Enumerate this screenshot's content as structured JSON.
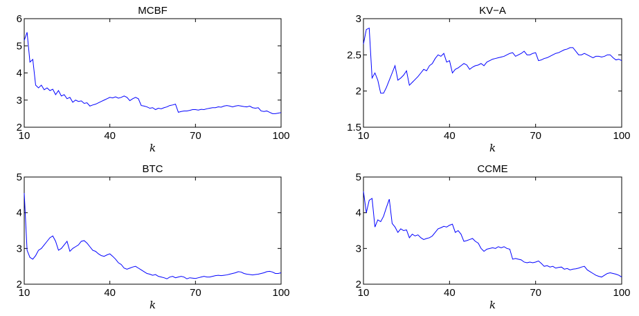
{
  "chart_data": [
    {
      "type": "line",
      "title": "MCBF",
      "xlabel": "k",
      "ylabel": "",
      "xlim": [
        10,
        100
      ],
      "ylim": [
        2,
        6
      ],
      "xticks": [
        10,
        40,
        70,
        100
      ],
      "yticks": [
        2,
        3,
        4,
        5,
        6
      ],
      "line_color": "#0000ff",
      "x": [
        10,
        11,
        12,
        13,
        14,
        15,
        16,
        17,
        18,
        19,
        20,
        21,
        22,
        23,
        24,
        25,
        26,
        27,
        28,
        29,
        30,
        31,
        32,
        33,
        34,
        35,
        36,
        37,
        38,
        39,
        40,
        41,
        42,
        43,
        44,
        45,
        46,
        47,
        48,
        49,
        50,
        51,
        52,
        53,
        54,
        55,
        56,
        57,
        58,
        59,
        60,
        61,
        62,
        63,
        64,
        65,
        66,
        67,
        68,
        69,
        70,
        71,
        72,
        73,
        74,
        75,
        76,
        77,
        78,
        79,
        80,
        81,
        82,
        83,
        84,
        85,
        86,
        87,
        88,
        89,
        90,
        91,
        92,
        93,
        94,
        95,
        96,
        97,
        98,
        99,
        100
      ],
      "y": [
        5.2,
        5.5,
        4.4,
        4.5,
        3.55,
        3.45,
        3.55,
        3.38,
        3.45,
        3.35,
        3.4,
        3.2,
        3.35,
        3.15,
        3.2,
        3.05,
        3.1,
        2.92,
        3.0,
        2.95,
        2.97,
        2.88,
        2.9,
        2.78,
        2.82,
        2.85,
        2.9,
        2.95,
        3.0,
        3.05,
        3.1,
        3.08,
        3.12,
        3.07,
        3.1,
        3.15,
        3.1,
        2.98,
        3.05,
        3.1,
        3.05,
        2.8,
        2.78,
        2.75,
        2.7,
        2.72,
        2.65,
        2.7,
        2.68,
        2.72,
        2.75,
        2.8,
        2.82,
        2.85,
        2.55,
        2.58,
        2.6,
        2.6,
        2.62,
        2.65,
        2.65,
        2.63,
        2.66,
        2.65,
        2.68,
        2.7,
        2.72,
        2.72,
        2.75,
        2.74,
        2.78,
        2.8,
        2.78,
        2.75,
        2.78,
        2.8,
        2.78,
        2.76,
        2.75,
        2.78,
        2.72,
        2.7,
        2.72,
        2.6,
        2.58,
        2.6,
        2.55,
        2.5,
        2.5,
        2.52,
        2.54
      ]
    },
    {
      "type": "line",
      "title": "KV−A",
      "xlabel": "k",
      "ylabel": "",
      "xlim": [
        10,
        100
      ],
      "ylim": [
        1.5,
        3
      ],
      "xticks": [
        10,
        40,
        70,
        100
      ],
      "yticks": [
        1.5,
        2,
        2.5,
        3
      ],
      "line_color": "#0000ff",
      "x": [
        10,
        11,
        12,
        13,
        14,
        15,
        16,
        17,
        18,
        19,
        20,
        21,
        22,
        23,
        24,
        25,
        26,
        27,
        28,
        29,
        30,
        31,
        32,
        33,
        34,
        35,
        36,
        37,
        38,
        39,
        40,
        41,
        42,
        43,
        44,
        45,
        46,
        47,
        48,
        49,
        50,
        51,
        52,
        53,
        54,
        55,
        56,
        57,
        58,
        59,
        60,
        61,
        62,
        63,
        64,
        65,
        66,
        67,
        68,
        69,
        70,
        71,
        72,
        73,
        74,
        75,
        76,
        77,
        78,
        79,
        80,
        81,
        82,
        83,
        84,
        85,
        86,
        87,
        88,
        89,
        90,
        91,
        92,
        93,
        94,
        95,
        96,
        97,
        98,
        99,
        100
      ],
      "y": [
        2.65,
        2.85,
        2.87,
        2.18,
        2.25,
        2.15,
        1.97,
        1.97,
        2.05,
        2.15,
        2.25,
        2.35,
        2.15,
        2.18,
        2.22,
        2.28,
        2.08,
        2.12,
        2.16,
        2.2,
        2.25,
        2.3,
        2.28,
        2.35,
        2.38,
        2.45,
        2.5,
        2.48,
        2.52,
        2.4,
        2.42,
        2.25,
        2.3,
        2.32,
        2.35,
        2.38,
        2.36,
        2.3,
        2.33,
        2.35,
        2.36,
        2.38,
        2.35,
        2.4,
        2.42,
        2.44,
        2.45,
        2.46,
        2.47,
        2.48,
        2.5,
        2.52,
        2.53,
        2.48,
        2.5,
        2.52,
        2.55,
        2.5,
        2.5,
        2.52,
        2.53,
        2.42,
        2.43,
        2.45,
        2.46,
        2.48,
        2.5,
        2.52,
        2.53,
        2.55,
        2.57,
        2.58,
        2.6,
        2.6,
        2.55,
        2.5,
        2.5,
        2.52,
        2.5,
        2.48,
        2.46,
        2.48,
        2.48,
        2.47,
        2.48,
        2.5,
        2.5,
        2.46,
        2.43,
        2.44,
        2.42
      ]
    },
    {
      "type": "line",
      "title": "BTC",
      "xlabel": "k",
      "ylabel": "",
      "xlim": [
        10,
        100
      ],
      "ylim": [
        2,
        5
      ],
      "xticks": [
        10,
        40,
        70,
        100
      ],
      "yticks": [
        2,
        3,
        4,
        5
      ],
      "line_color": "#0000ff",
      "x": [
        10,
        11,
        12,
        13,
        14,
        15,
        16,
        17,
        18,
        19,
        20,
        21,
        22,
        23,
        24,
        25,
        26,
        27,
        28,
        29,
        30,
        31,
        32,
        33,
        34,
        35,
        36,
        37,
        38,
        39,
        40,
        41,
        42,
        43,
        44,
        45,
        46,
        47,
        48,
        49,
        50,
        51,
        52,
        53,
        54,
        55,
        56,
        57,
        58,
        59,
        60,
        61,
        62,
        63,
        64,
        65,
        66,
        67,
        68,
        69,
        70,
        71,
        72,
        73,
        74,
        75,
        76,
        77,
        78,
        79,
        80,
        81,
        82,
        83,
        84,
        85,
        86,
        87,
        88,
        89,
        90,
        91,
        92,
        93,
        94,
        95,
        96,
        97,
        98,
        99,
        100
      ],
      "y": [
        4.55,
        2.95,
        2.75,
        2.7,
        2.8,
        2.95,
        3.0,
        3.1,
        3.2,
        3.3,
        3.35,
        3.2,
        2.95,
        3.0,
        3.1,
        3.2,
        2.92,
        3.0,
        3.05,
        3.1,
        3.2,
        3.22,
        3.15,
        3.05,
        2.95,
        2.92,
        2.85,
        2.8,
        2.78,
        2.82,
        2.85,
        2.78,
        2.7,
        2.6,
        2.55,
        2.45,
        2.42,
        2.45,
        2.48,
        2.5,
        2.45,
        2.4,
        2.35,
        2.3,
        2.28,
        2.25,
        2.27,
        2.22,
        2.2,
        2.18,
        2.15,
        2.2,
        2.22,
        2.18,
        2.2,
        2.22,
        2.2,
        2.15,
        2.18,
        2.17,
        2.16,
        2.18,
        2.2,
        2.22,
        2.2,
        2.2,
        2.22,
        2.24,
        2.25,
        2.24,
        2.25,
        2.26,
        2.28,
        2.3,
        2.32,
        2.35,
        2.34,
        2.3,
        2.28,
        2.27,
        2.26,
        2.27,
        2.28,
        2.3,
        2.32,
        2.35,
        2.36,
        2.34,
        2.3,
        2.3,
        2.32
      ]
    },
    {
      "type": "line",
      "title": "CCME",
      "xlabel": "k",
      "ylabel": "",
      "xlim": [
        10,
        100
      ],
      "ylim": [
        2,
        5
      ],
      "xticks": [
        10,
        40,
        70,
        100
      ],
      "yticks": [
        2,
        3,
        4,
        5
      ],
      "line_color": "#0000ff",
      "x": [
        10,
        11,
        12,
        13,
        14,
        15,
        16,
        17,
        18,
        19,
        20,
        21,
        22,
        23,
        24,
        25,
        26,
        27,
        28,
        29,
        30,
        31,
        32,
        33,
        34,
        35,
        36,
        37,
        38,
        39,
        40,
        41,
        42,
        43,
        44,
        45,
        46,
        47,
        48,
        49,
        50,
        51,
        52,
        53,
        54,
        55,
        56,
        57,
        58,
        59,
        60,
        61,
        62,
        63,
        64,
        65,
        66,
        67,
        68,
        69,
        70,
        71,
        72,
        73,
        74,
        75,
        76,
        77,
        78,
        79,
        80,
        81,
        82,
        83,
        84,
        85,
        86,
        87,
        88,
        89,
        90,
        91,
        92,
        93,
        94,
        95,
        96,
        97,
        98,
        99,
        100
      ],
      "y": [
        4.6,
        4.0,
        4.35,
        4.4,
        3.6,
        3.8,
        3.75,
        3.9,
        4.15,
        4.38,
        3.7,
        3.6,
        3.45,
        3.55,
        3.5,
        3.52,
        3.3,
        3.4,
        3.35,
        3.38,
        3.3,
        3.25,
        3.28,
        3.3,
        3.35,
        3.45,
        3.55,
        3.58,
        3.62,
        3.6,
        3.65,
        3.68,
        3.45,
        3.5,
        3.4,
        3.2,
        3.22,
        3.25,
        3.28,
        3.2,
        3.15,
        3.0,
        2.92,
        2.98,
        3.0,
        3.02,
        3.0,
        3.05,
        3.02,
        3.05,
        3.0,
        2.98,
        2.7,
        2.72,
        2.7,
        2.68,
        2.62,
        2.6,
        2.62,
        2.6,
        2.62,
        2.65,
        2.58,
        2.5,
        2.52,
        2.48,
        2.5,
        2.45,
        2.47,
        2.48,
        2.42,
        2.44,
        2.4,
        2.42,
        2.43,
        2.45,
        2.48,
        2.5,
        2.4,
        2.35,
        2.3,
        2.25,
        2.22,
        2.2,
        2.25,
        2.3,
        2.32,
        2.3,
        2.28,
        2.25,
        2.2
      ]
    }
  ]
}
